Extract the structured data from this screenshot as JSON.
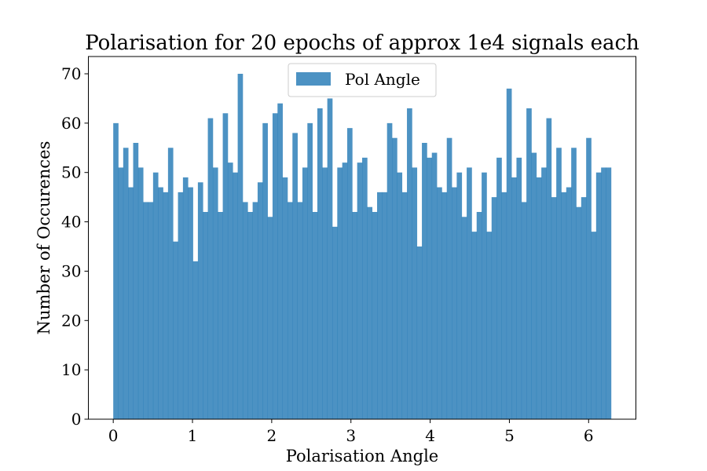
{
  "chart_data": {
    "type": "bar",
    "title": "Polarisation for 20 epochs of approx 1e4 signals each",
    "xlabel": "Polarisation Angle",
    "ylabel": "Number of Occurences",
    "xlim": [
      -0.314,
      6.597
    ],
    "ylim": [
      0,
      73.5
    ],
    "xticks": [
      0,
      1,
      2,
      3,
      4,
      5,
      6
    ],
    "xtick_labels": [
      "0",
      "1",
      "2",
      "3",
      "4",
      "5",
      "6"
    ],
    "yticks": [
      0,
      10,
      20,
      30,
      40,
      50,
      60,
      70
    ],
    "ytick_labels": [
      "0",
      "10",
      "20",
      "30",
      "40",
      "50",
      "60",
      "70"
    ],
    "bin_range": [
      0,
      6.2832
    ],
    "grid": false,
    "legend_position": "upper center",
    "series": [
      {
        "name": "Pol Angle",
        "color": "#1f77b4",
        "opacity": 0.8,
        "values": [
          60,
          51,
          55,
          47,
          56,
          51,
          44,
          44,
          50,
          47,
          46,
          55,
          36,
          46,
          49,
          47,
          32,
          48,
          42,
          61,
          51,
          42,
          62,
          52,
          50,
          70,
          44,
          42,
          44,
          48,
          60,
          41,
          62,
          64,
          49,
          44,
          58,
          44,
          51,
          60,
          42,
          63,
          51,
          65,
          39,
          51,
          52,
          59,
          42,
          52,
          53,
          43,
          42,
          46,
          46,
          60,
          57,
          50,
          46,
          63,
          51,
          35,
          56,
          53,
          54,
          47,
          46,
          57,
          47,
          50,
          41,
          51,
          38,
          42,
          50,
          38,
          45,
          53,
          46,
          67,
          49,
          53,
          44,
          63,
          54,
          49,
          51,
          61,
          45,
          55,
          46,
          47,
          55,
          43,
          45,
          57,
          38,
          50,
          51,
          51
        ]
      }
    ]
  }
}
